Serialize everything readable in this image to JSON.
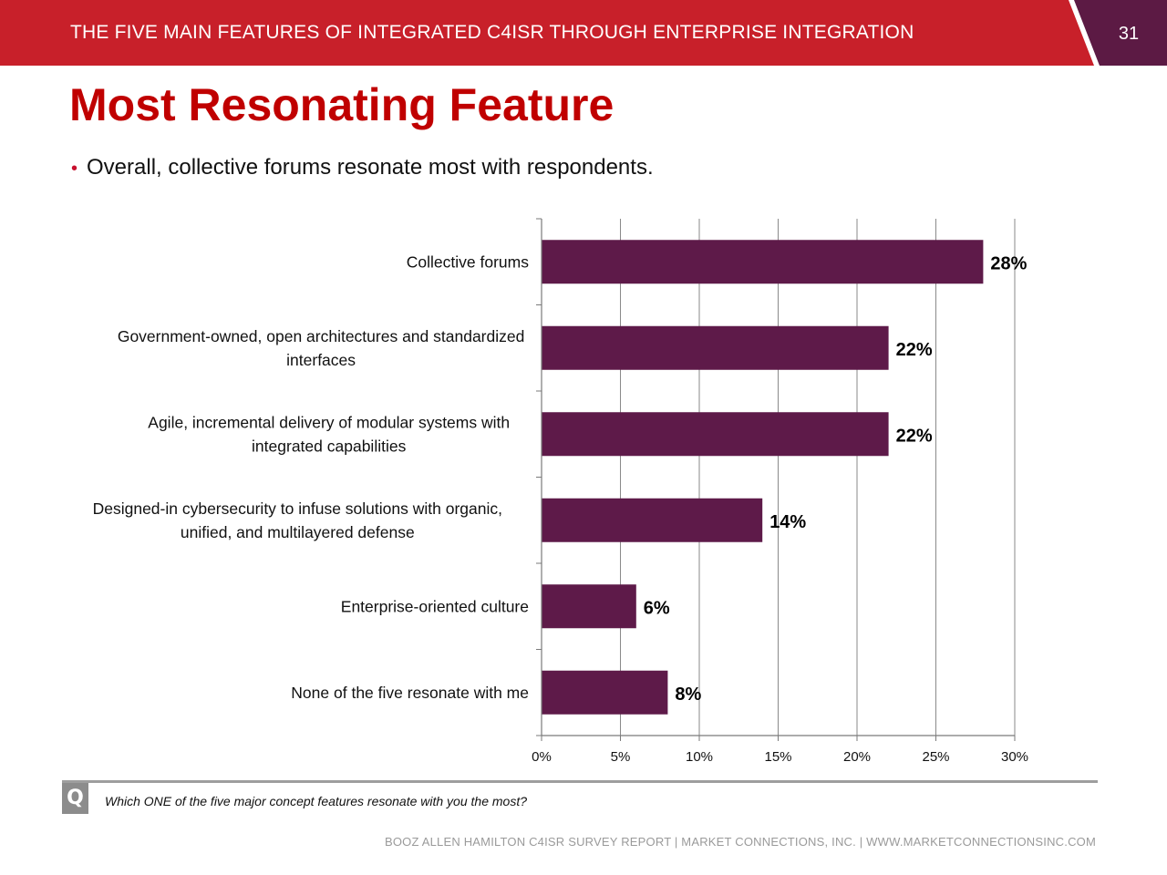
{
  "header": {
    "title": "THE FIVE MAIN FEATURES OF INTEGRATED C4ISR THROUGH ENTERPRISE INTEGRATION",
    "page_number": "31",
    "bar_color": "#c8202a",
    "tab_color": "#5c1a44"
  },
  "slide": {
    "title": "Most Resonating Feature",
    "bullet": "Overall, collective forums resonate most with respondents."
  },
  "chart_data": {
    "type": "bar",
    "orientation": "horizontal",
    "categories": [
      "Collective forums",
      "Government-owned, open architectures and standardized interfaces",
      "Agile, incremental delivery of modular systems with integrated capabilities",
      "Designed-in cybersecurity to infuse solutions with organic, unified, and multilayered defense",
      "Enterprise-oriented culture",
      "None of the five resonate with me"
    ],
    "category_lines": [
      [
        "Collective forums"
      ],
      [
        "Government-owned, open architectures and standardized",
        "interfaces"
      ],
      [
        "Agile, incremental delivery of modular systems with",
        "integrated capabilities"
      ],
      [
        "Designed-in cybersecurity to infuse solutions with organic,",
        "unified, and multilayered defense"
      ],
      [
        "Enterprise-oriented culture"
      ],
      [
        "None of the five resonate with me"
      ]
    ],
    "values": [
      28,
      22,
      22,
      14,
      6,
      8
    ],
    "data_labels": [
      "28%",
      "22%",
      "22%",
      "14%",
      "6%",
      "8%"
    ],
    "xlim": [
      0,
      30
    ],
    "x_ticks": [
      0,
      5,
      10,
      15,
      20,
      25,
      30
    ],
    "x_tick_labels": [
      "0%",
      "5%",
      "10%",
      "15%",
      "20%",
      "25%",
      "30%"
    ],
    "grid": true,
    "bar_color": "#5e1a49",
    "legend": "none"
  },
  "question": {
    "icon": "Q",
    "text": "Which ONE of the five major concept features resonate with you the most?"
  },
  "footer": {
    "text": "BOOZ ALLEN HAMILTON C4ISR SURVEY REPORT   |   MARKET CONNECTIONS, INC.   |   WWW.MARKETCONNECTIONSINC.COM"
  }
}
